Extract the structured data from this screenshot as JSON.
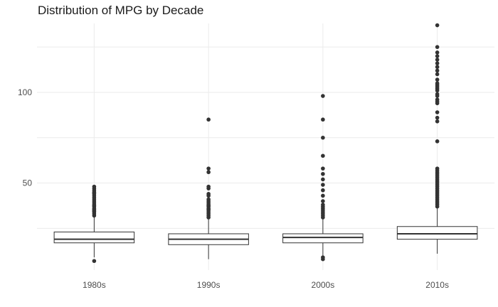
{
  "chart_data": {
    "type": "boxplot",
    "title": "Distribution of MPG by Decade",
    "xlabel": "",
    "ylabel": "",
    "categories": [
      "1980s",
      "1990s",
      "2000s",
      "2010s"
    ],
    "ylim": [
      2,
      138
    ],
    "y_ticks": [
      50,
      100
    ],
    "grid": true,
    "legend": "none",
    "boxes": [
      {
        "category": "1980s",
        "min": 9,
        "q1": 17,
        "median": 19,
        "q3": 23,
        "max": 31,
        "outliers": [
          7,
          32,
          33,
          34,
          34.5,
          35,
          35.5,
          36,
          37,
          37.5,
          38,
          39,
          40,
          41,
          42,
          43,
          44,
          44.5,
          45,
          46,
          47,
          48
        ]
      },
      {
        "category": "1990s",
        "min": 8,
        "q1": 16,
        "median": 19,
        "q3": 22,
        "max": 30,
        "outliers": [
          31,
          32,
          33,
          34,
          35,
          35.5,
          36,
          37,
          37.5,
          38,
          39,
          40,
          41,
          43,
          44,
          47,
          48,
          56,
          58,
          85
        ]
      },
      {
        "category": "2000s",
        "min": 10,
        "q1": 17,
        "median": 20,
        "q3": 22,
        "max": 30,
        "outliers": [
          8,
          9,
          31,
          32,
          33,
          34,
          35,
          36,
          37,
          38,
          40,
          43,
          46,
          49,
          52,
          55,
          58,
          65,
          75,
          85,
          98
        ]
      },
      {
        "category": "2010s",
        "min": 11,
        "q1": 19,
        "median": 22,
        "q3": 26,
        "max": 36,
        "outliers": [
          37,
          38,
          39,
          40,
          41,
          42,
          43,
          44,
          45,
          46,
          47,
          48,
          49,
          50,
          51,
          52,
          53,
          54,
          55,
          56,
          57,
          58,
          73,
          84,
          86,
          89,
          94,
          95,
          96,
          98,
          99,
          101,
          102,
          103,
          104,
          105,
          107,
          110,
          112,
          114,
          116,
          118,
          120,
          122,
          125,
          137
        ]
      }
    ],
    "colors": {
      "box_stroke": "#333333",
      "box_fill": "#ffffff",
      "point": "#333333",
      "grid": "#ebebeb",
      "text": "#4d4d4d"
    }
  }
}
